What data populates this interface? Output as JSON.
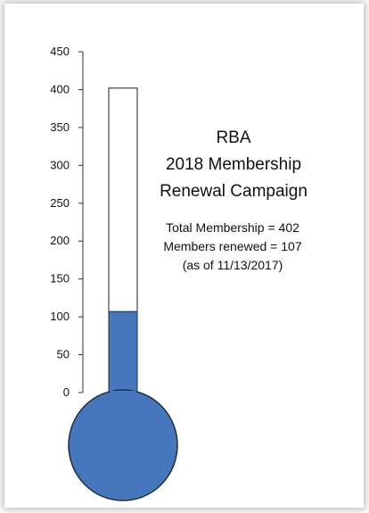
{
  "colors": {
    "fill": "#4677BD",
    "stroke": "#1F2F45",
    "axis": "#333333"
  },
  "chart_data": {
    "type": "bar",
    "categories": [
      ""
    ],
    "values": [
      107
    ],
    "total": 402,
    "ylim": [
      0,
      450
    ],
    "yticks": [
      "0",
      "50",
      "100",
      "150",
      "200",
      "250",
      "300",
      "350",
      "400",
      "450"
    ],
    "grid": false,
    "legend": "none",
    "title_lines": [
      "RBA",
      "2018 Membership",
      "Renewal Campaign"
    ],
    "info_lines": [
      "Total Membership  = 402",
      "Members renewed = 107",
      "(as of 11/13/2017)"
    ]
  }
}
